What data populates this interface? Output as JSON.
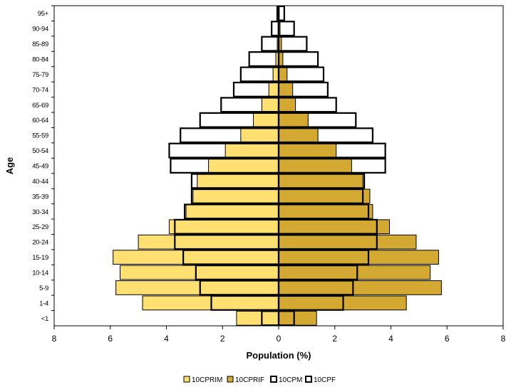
{
  "chart_data": {
    "type": "bar",
    "orientation": "horizontal",
    "layout": "population-pyramid",
    "ylabel": "Age",
    "xlabel": "Population (%)",
    "categories": [
      "<1",
      "1-4",
      "5-9",
      "10-14",
      "15-19",
      "20-24",
      "25-29",
      "30-34",
      "35-39",
      "40-44",
      "45-49",
      "50-54",
      "55-59",
      "60-64",
      "65-69",
      "70-74",
      "75-79",
      "80-84",
      "85-89",
      "90-94",
      "95+"
    ],
    "xlim": [
      -8,
      8
    ],
    "xticks": [
      -8,
      -6,
      -4,
      -2,
      0,
      2,
      4,
      6,
      8
    ],
    "xtick_labels": [
      "8",
      "6",
      "4",
      "2",
      "0",
      "2",
      "4",
      "6",
      "8"
    ],
    "grid": false,
    "legend_position": "bottom",
    "series": [
      {
        "name": "10CPRIM",
        "side": "left",
        "style": "filled",
        "color": "#FFE070",
        "values": [
          1.5,
          4.85,
          5.8,
          5.65,
          5.9,
          5.0,
          3.9,
          3.3,
          3.05,
          2.9,
          2.5,
          1.9,
          1.35,
          0.9,
          0.6,
          0.35,
          0.2,
          0.1,
          0.05,
          0.02,
          0.01
        ]
      },
      {
        "name": "10CPRIF",
        "side": "right",
        "style": "filled",
        "color": "#D4A932",
        "values": [
          1.35,
          4.55,
          5.8,
          5.4,
          5.7,
          4.9,
          3.95,
          3.35,
          3.25,
          3.0,
          2.6,
          2.05,
          1.4,
          1.05,
          0.6,
          0.5,
          0.3,
          0.15,
          0.1,
          0.05,
          0.02
        ]
      },
      {
        "name": "10CPM",
        "side": "left",
        "style": "outline",
        "color": "#000000",
        "values": [
          0.6,
          2.4,
          2.8,
          2.95,
          3.4,
          3.7,
          3.7,
          3.35,
          3.1,
          3.1,
          3.85,
          3.9,
          3.5,
          2.8,
          2.05,
          1.6,
          1.35,
          1.05,
          0.6,
          0.25,
          0.05
        ]
      },
      {
        "name": "10CPF",
        "side": "right",
        "style": "outline",
        "color": "#000000",
        "values": [
          0.55,
          2.3,
          2.65,
          2.8,
          3.2,
          3.5,
          3.5,
          3.2,
          3.0,
          3.05,
          3.8,
          3.8,
          3.35,
          2.75,
          2.05,
          1.75,
          1.6,
          1.4,
          1.0,
          0.55,
          0.2
        ]
      }
    ]
  }
}
